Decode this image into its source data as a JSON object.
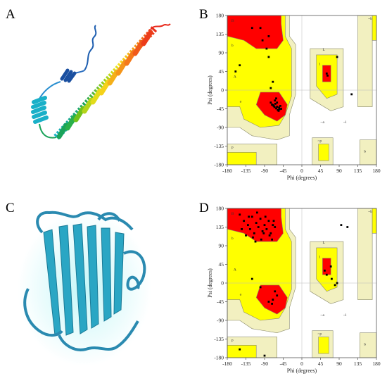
{
  "figure": {
    "panels": [
      {
        "letter": "A",
        "kind": "structure"
      },
      {
        "letter": "B",
        "kind": "ramachandran"
      },
      {
        "letter": "C",
        "kind": "structure"
      },
      {
        "letter": "D",
        "kind": "ramachandran"
      }
    ]
  },
  "ramachandran": {
    "xlabel": "Phi (degrees)",
    "ylabel": "Psi (degrees)",
    "xticks": [
      "-180",
      "-135",
      "-90",
      "-45",
      "0",
      "45",
      "90",
      "135",
      "180"
    ],
    "yticks": [
      "180",
      "135",
      "90",
      "45",
      "0",
      "-45",
      "-90",
      "-135",
      "-180"
    ],
    "region_labels": [
      "B",
      "b",
      "A",
      "a",
      "L",
      "l",
      "~b",
      "~p",
      "~a",
      "~l",
      "p",
      "b"
    ],
    "region_colors": {
      "core": "#ff0000",
      "allowed": "#ffff00",
      "generous": "#f2f0c0",
      "border": "#8a8a6a"
    }
  },
  "chart_data": [
    {
      "type": "scatter",
      "panel": "B",
      "xlabel": "Phi (degrees)",
      "ylabel": "Psi (degrees)",
      "xlim": [
        -180,
        180
      ],
      "ylim": [
        -180,
        180
      ],
      "x": [
        -120,
        -95,
        -85,
        -80,
        -150,
        -70,
        -65,
        -75,
        -72,
        -68,
        -60,
        -55,
        -50,
        -58,
        -62,
        -66,
        -70,
        -64,
        -60,
        -56,
        -54,
        -52,
        -62,
        -75,
        -80,
        -100,
        -160,
        60,
        62,
        85,
        120
      ],
      "y": [
        150,
        120,
        100,
        80,
        60,
        20,
        -25,
        -30,
        -35,
        -38,
        -40,
        -42,
        -45,
        -48,
        -44,
        -41,
        -36,
        -33,
        -30,
        -50,
        -46,
        -38,
        -20,
        5,
        130,
        150,
        45,
        40,
        35,
        80,
        -10
      ]
    },
    {
      "type": "scatter",
      "panel": "D",
      "xlabel": "Phi (degrees)",
      "ylabel": "Psi (degrees)",
      "xlim": [
        -180,
        180
      ],
      "ylim": [
        -180,
        180
      ],
      "x": [
        -150,
        -140,
        -130,
        -125,
        -120,
        -115,
        -110,
        -105,
        -100,
        -95,
        -90,
        -85,
        -80,
        -75,
        -70,
        -65,
        -135,
        -128,
        -118,
        -108,
        -98,
        -88,
        -78,
        -68,
        -145,
        -112,
        -92,
        -72,
        -60,
        -70,
        -65,
        -72,
        -80,
        -100,
        -150,
        55,
        60,
        70,
        72,
        80,
        85,
        95,
        110,
        -120,
        -90
      ],
      "y": [
        165,
        150,
        140,
        130,
        160,
        120,
        145,
        135,
        155,
        125,
        140,
        130,
        150,
        120,
        140,
        135,
        115,
        160,
        110,
        170,
        105,
        160,
        115,
        150,
        130,
        100,
        120,
        105,
        -30,
        -40,
        -20,
        -50,
        -45,
        -10,
        -160,
        30,
        20,
        40,
        10,
        -5,
        0,
        140,
        135,
        10,
        -175
      ]
    }
  ]
}
